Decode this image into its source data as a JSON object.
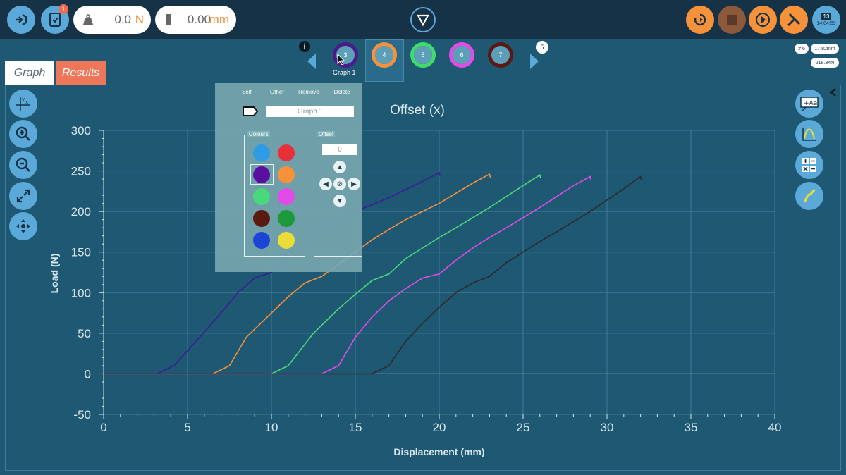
{
  "toolbar": {
    "load_value": "0.0",
    "load_unit": "N",
    "disp_value": "0.00",
    "disp_unit": "mm",
    "notification_count": "1",
    "clock_day": "13",
    "clock_time": "14:04:59"
  },
  "tabs": [
    {
      "label": "Graph"
    },
    {
      "label": "Results"
    }
  ],
  "graph_selector": {
    "items": [
      {
        "number": "3",
        "color": "#4b1b8c"
      },
      {
        "number": "4",
        "color": "#f7923a"
      },
      {
        "number": "5",
        "color": "#3fdc6a"
      },
      {
        "number": "6",
        "color": "#e14ce6"
      },
      {
        "number": "7",
        "color": "#5a1a12"
      }
    ],
    "current_label": "Graph 1",
    "more_count": "5"
  },
  "info_badges": {
    "graph_count": "# 6",
    "max_disp": "17.82mm",
    "max_load": "218.34N"
  },
  "panel": {
    "actions": [
      "Self",
      "Other",
      "Remove",
      "Delete"
    ],
    "name_value": "Graph 1",
    "colours_title": "Colours",
    "colours": [
      "#2e9be6",
      "#e8303a",
      "#5a0fa0",
      "#f7923a",
      "#49d97a",
      "#e24be8",
      "#5a1a10",
      "#1c9a3a",
      "#1c45d8",
      "#ecdc3a"
    ],
    "offset_title": "Offset",
    "offset_value": "0"
  },
  "chart_data": {
    "type": "line",
    "title": "Offset (x)",
    "xlabel": "Displacement (mm)",
    "ylabel": "Load (N)",
    "xlim": [
      0,
      40
    ],
    "ylim": [
      -50,
      300
    ],
    "xticks": [
      0,
      5,
      10,
      15,
      20,
      25,
      30,
      35,
      40
    ],
    "yticks": [
      -50,
      0,
      50,
      100,
      150,
      200,
      250,
      300
    ],
    "grid": true,
    "series": [
      {
        "color": "#3a1c9a",
        "points": [
          [
            0,
            0
          ],
          [
            3.2,
            0
          ],
          [
            4.2,
            10
          ],
          [
            5.5,
            40
          ],
          [
            7,
            75
          ],
          [
            8,
            100
          ],
          [
            9,
            118
          ],
          [
            10,
            125
          ],
          [
            11,
            145
          ],
          [
            12,
            165
          ],
          [
            13,
            180
          ],
          [
            14,
            192
          ],
          [
            15,
            200
          ],
          [
            17,
            217
          ],
          [
            19,
            237
          ],
          [
            20,
            248
          ],
          [
            20.05,
            244
          ]
        ]
      },
      {
        "color": "#f7923a",
        "points": [
          [
            0,
            0
          ],
          [
            6.5,
            0
          ],
          [
            7.5,
            10
          ],
          [
            8.5,
            45
          ],
          [
            10,
            75
          ],
          [
            11,
            95
          ],
          [
            12,
            112
          ],
          [
            13,
            120
          ],
          [
            14,
            135
          ],
          [
            15,
            150
          ],
          [
            16,
            165
          ],
          [
            17,
            178
          ],
          [
            18,
            190
          ],
          [
            20,
            210
          ],
          [
            22,
            235
          ],
          [
            23,
            246
          ],
          [
            23.05,
            242
          ]
        ]
      },
      {
        "color": "#49d97a",
        "points": [
          [
            0,
            0
          ],
          [
            10,
            0
          ],
          [
            11,
            10
          ],
          [
            12.5,
            50
          ],
          [
            14,
            80
          ],
          [
            15,
            98
          ],
          [
            16,
            115
          ],
          [
            17,
            123
          ],
          [
            18,
            142
          ],
          [
            19,
            155
          ],
          [
            20,
            168
          ],
          [
            21,
            180
          ],
          [
            23,
            205
          ],
          [
            25,
            232
          ],
          [
            26,
            245
          ],
          [
            26.05,
            241
          ]
        ]
      },
      {
        "color": "#e24be8",
        "points": [
          [
            0,
            0
          ],
          [
            13,
            0
          ],
          [
            14,
            10
          ],
          [
            15,
            45
          ],
          [
            16,
            70
          ],
          [
            17,
            90
          ],
          [
            18,
            105
          ],
          [
            19,
            118
          ],
          [
            20,
            123
          ],
          [
            21,
            140
          ],
          [
            22,
            155
          ],
          [
            23,
            168
          ],
          [
            24,
            180
          ],
          [
            26,
            205
          ],
          [
            28,
            232
          ],
          [
            29,
            243
          ],
          [
            29.05,
            239
          ]
        ]
      },
      {
        "color": "#2a2a2a",
        "points": [
          [
            0,
            0
          ],
          [
            16,
            0
          ],
          [
            17,
            10
          ],
          [
            18,
            40
          ],
          [
            19,
            62
          ],
          [
            20,
            82
          ],
          [
            21,
            100
          ],
          [
            22,
            112
          ],
          [
            23,
            120
          ],
          [
            24,
            137
          ],
          [
            25,
            150
          ],
          [
            26,
            163
          ],
          [
            27,
            175
          ],
          [
            29,
            200
          ],
          [
            31,
            228
          ],
          [
            32,
            243
          ],
          [
            32.05,
            239
          ]
        ]
      }
    ]
  }
}
